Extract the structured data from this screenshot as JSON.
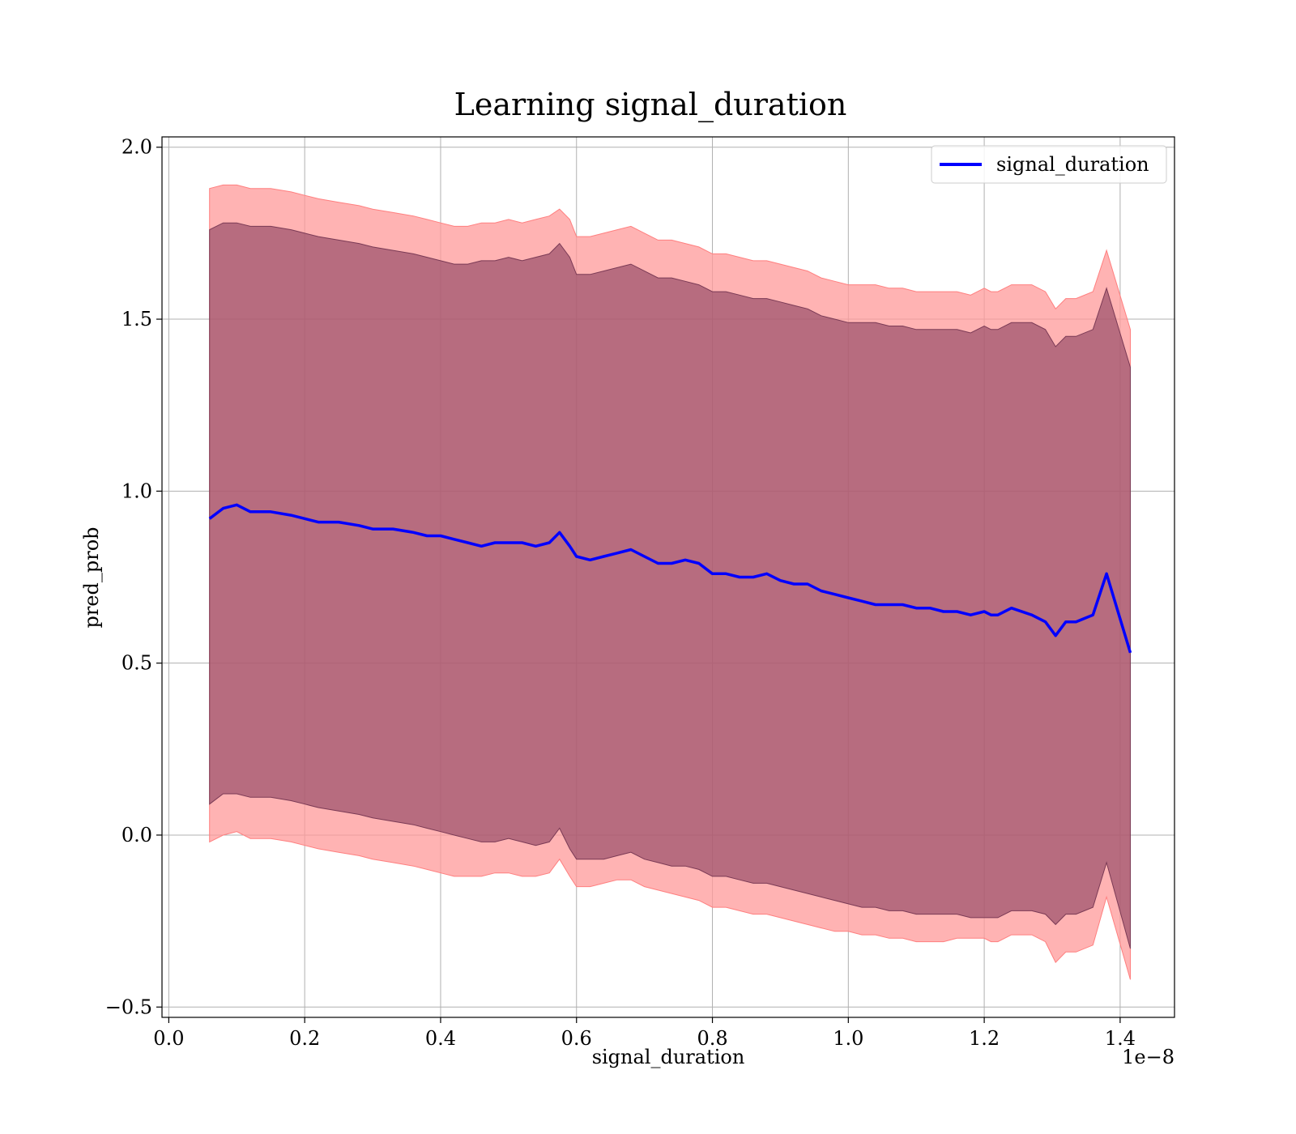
{
  "chart_data": {
    "type": "line",
    "title": "Learning signal_duration",
    "xlabel": "signal_duration",
    "ylabel": "pred_prob",
    "x_offset_label": "1e−8",
    "xlim": [
      -0.01,
      1.48
    ],
    "ylim": [
      -0.53,
      2.03
    ],
    "x_ticks": [
      0.0,
      0.2,
      0.4,
      0.6,
      0.8,
      1.0,
      1.2,
      1.4
    ],
    "x_tick_labels": [
      "0.0",
      "0.2",
      "0.4",
      "0.6",
      "0.8",
      "1.0",
      "1.2",
      "1.4"
    ],
    "y_ticks": [
      -0.5,
      0.0,
      0.5,
      1.0,
      1.5,
      2.0
    ],
    "y_tick_labels": [
      "−0.5",
      "0.0",
      "0.5",
      "1.0",
      "1.5",
      "2.0"
    ],
    "grid": true,
    "legend_position": "upper right",
    "colors": {
      "line": "#0000ff",
      "outer_band": "#ff9999",
      "inner_band": "#8b4060",
      "grid": "#b0b0b0"
    },
    "series": [
      {
        "name": "signal_duration",
        "x": [
          0.06,
          0.08,
          0.1,
          0.12,
          0.15,
          0.18,
          0.2,
          0.22,
          0.25,
          0.28,
          0.3,
          0.33,
          0.36,
          0.38,
          0.4,
          0.42,
          0.44,
          0.46,
          0.48,
          0.5,
          0.52,
          0.54,
          0.56,
          0.575,
          0.59,
          0.6,
          0.62,
          0.64,
          0.66,
          0.68,
          0.7,
          0.72,
          0.74,
          0.76,
          0.78,
          0.8,
          0.82,
          0.84,
          0.86,
          0.88,
          0.9,
          0.92,
          0.94,
          0.96,
          0.98,
          1.0,
          1.02,
          1.04,
          1.06,
          1.08,
          1.1,
          1.12,
          1.14,
          1.16,
          1.18,
          1.2,
          1.21,
          1.22,
          1.24,
          1.27,
          1.29,
          1.305,
          1.32,
          1.335,
          1.36,
          1.38,
          1.415
        ],
        "y": [
          0.92,
          0.95,
          0.96,
          0.94,
          0.94,
          0.93,
          0.92,
          0.91,
          0.91,
          0.9,
          0.89,
          0.89,
          0.88,
          0.87,
          0.87,
          0.86,
          0.85,
          0.84,
          0.85,
          0.85,
          0.85,
          0.84,
          0.85,
          0.88,
          0.84,
          0.81,
          0.8,
          0.81,
          0.82,
          0.83,
          0.81,
          0.79,
          0.79,
          0.8,
          0.79,
          0.76,
          0.76,
          0.75,
          0.75,
          0.76,
          0.74,
          0.73,
          0.73,
          0.71,
          0.7,
          0.69,
          0.68,
          0.67,
          0.67,
          0.67,
          0.66,
          0.66,
          0.65,
          0.65,
          0.64,
          0.65,
          0.64,
          0.64,
          0.66,
          0.64,
          0.62,
          0.58,
          0.62,
          0.62,
          0.64,
          0.76,
          0.53
        ],
        "outer_upper": [
          1.88,
          1.89,
          1.89,
          1.88,
          1.88,
          1.87,
          1.86,
          1.85,
          1.84,
          1.83,
          1.82,
          1.81,
          1.8,
          1.79,
          1.78,
          1.77,
          1.77,
          1.78,
          1.78,
          1.79,
          1.78,
          1.79,
          1.8,
          1.82,
          1.79,
          1.74,
          1.74,
          1.75,
          1.76,
          1.77,
          1.75,
          1.73,
          1.73,
          1.72,
          1.71,
          1.69,
          1.69,
          1.68,
          1.67,
          1.67,
          1.66,
          1.65,
          1.64,
          1.62,
          1.61,
          1.6,
          1.6,
          1.6,
          1.59,
          1.59,
          1.58,
          1.58,
          1.58,
          1.58,
          1.57,
          1.59,
          1.58,
          1.58,
          1.6,
          1.6,
          1.58,
          1.53,
          1.56,
          1.56,
          1.58,
          1.7,
          1.47
        ],
        "inner_upper": [
          1.76,
          1.78,
          1.78,
          1.77,
          1.77,
          1.76,
          1.75,
          1.74,
          1.73,
          1.72,
          1.71,
          1.7,
          1.69,
          1.68,
          1.67,
          1.66,
          1.66,
          1.67,
          1.67,
          1.68,
          1.67,
          1.68,
          1.69,
          1.72,
          1.68,
          1.63,
          1.63,
          1.64,
          1.65,
          1.66,
          1.64,
          1.62,
          1.62,
          1.61,
          1.6,
          1.58,
          1.58,
          1.57,
          1.56,
          1.56,
          1.55,
          1.54,
          1.53,
          1.51,
          1.5,
          1.49,
          1.49,
          1.49,
          1.48,
          1.48,
          1.47,
          1.47,
          1.47,
          1.47,
          1.46,
          1.48,
          1.47,
          1.47,
          1.49,
          1.49,
          1.47,
          1.42,
          1.45,
          1.45,
          1.47,
          1.59,
          1.36
        ],
        "inner_lower": [
          0.09,
          0.12,
          0.12,
          0.11,
          0.11,
          0.1,
          0.09,
          0.08,
          0.07,
          0.06,
          0.05,
          0.04,
          0.03,
          0.02,
          0.01,
          0.0,
          -0.01,
          -0.02,
          -0.02,
          -0.01,
          -0.02,
          -0.03,
          -0.02,
          0.02,
          -0.04,
          -0.07,
          -0.07,
          -0.07,
          -0.06,
          -0.05,
          -0.07,
          -0.08,
          -0.09,
          -0.09,
          -0.1,
          -0.12,
          -0.12,
          -0.13,
          -0.14,
          -0.14,
          -0.15,
          -0.16,
          -0.17,
          -0.18,
          -0.19,
          -0.2,
          -0.21,
          -0.21,
          -0.22,
          -0.22,
          -0.23,
          -0.23,
          -0.23,
          -0.23,
          -0.24,
          -0.24,
          -0.24,
          -0.24,
          -0.22,
          -0.22,
          -0.23,
          -0.26,
          -0.23,
          -0.23,
          -0.21,
          -0.08,
          -0.33
        ],
        "outer_lower": [
          -0.02,
          0.0,
          0.01,
          -0.01,
          -0.01,
          -0.02,
          -0.03,
          -0.04,
          -0.05,
          -0.06,
          -0.07,
          -0.08,
          -0.09,
          -0.1,
          -0.11,
          -0.12,
          -0.12,
          -0.12,
          -0.11,
          -0.11,
          -0.12,
          -0.12,
          -0.11,
          -0.07,
          -0.12,
          -0.15,
          -0.15,
          -0.14,
          -0.13,
          -0.13,
          -0.15,
          -0.16,
          -0.17,
          -0.18,
          -0.19,
          -0.21,
          -0.21,
          -0.22,
          -0.23,
          -0.23,
          -0.24,
          -0.25,
          -0.26,
          -0.27,
          -0.28,
          -0.28,
          -0.29,
          -0.29,
          -0.3,
          -0.3,
          -0.31,
          -0.31,
          -0.31,
          -0.3,
          -0.3,
          -0.3,
          -0.31,
          -0.31,
          -0.29,
          -0.29,
          -0.31,
          -0.37,
          -0.34,
          -0.34,
          -0.32,
          -0.18,
          -0.42
        ]
      }
    ]
  }
}
